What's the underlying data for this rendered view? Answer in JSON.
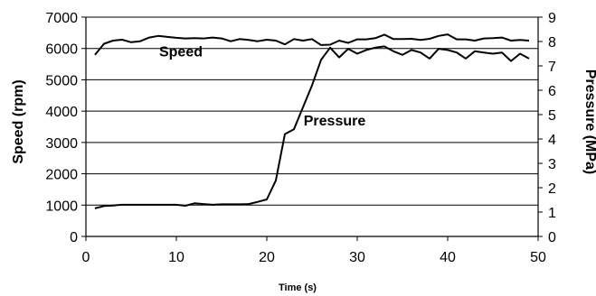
{
  "chart_data": {
    "type": "line",
    "xlabel": "Time (s)",
    "ylabel_left": "Speed (rpm)",
    "ylabel_right": "Pressure (MPa)",
    "xlim": [
      0,
      50
    ],
    "ylim_left": [
      0,
      7000
    ],
    "ylim_right": [
      0,
      9
    ],
    "x_ticks": [
      0,
      10,
      20,
      30,
      40,
      50
    ],
    "y_ticks_left": [
      0,
      1000,
      2000,
      3000,
      4000,
      5000,
      6000,
      7000
    ],
    "y_ticks_right": [
      0,
      1,
      2,
      3,
      4,
      5,
      6,
      7,
      8,
      9
    ],
    "grid": "horizontal",
    "series": [
      {
        "name": "Speed",
        "axis": "left",
        "x": [
          1,
          2,
          3,
          4,
          5,
          6,
          7,
          8,
          9,
          10,
          11,
          12,
          13,
          14,
          15,
          16,
          17,
          18,
          19,
          20,
          21,
          22,
          23,
          24,
          25,
          26,
          27,
          28,
          29,
          30,
          31,
          32,
          33,
          34,
          35,
          36,
          37,
          38,
          39,
          40,
          41,
          42,
          43,
          44,
          45,
          46,
          47,
          48,
          49
        ],
        "y": [
          5800,
          6150,
          6250,
          6280,
          6200,
          6230,
          6350,
          6400,
          6370,
          6340,
          6320,
          6330,
          6320,
          6350,
          6320,
          6230,
          6300,
          6270,
          6230,
          6280,
          6250,
          6130,
          6300,
          6250,
          6300,
          6110,
          6120,
          6250,
          6180,
          6290,
          6290,
          6330,
          6440,
          6300,
          6300,
          6310,
          6270,
          6310,
          6400,
          6450,
          6290,
          6290,
          6250,
          6320,
          6330,
          6350,
          6250,
          6270,
          6250
        ]
      },
      {
        "name": "Pressure",
        "axis": "right",
        "x": [
          1,
          2,
          3,
          4,
          5,
          6,
          7,
          8,
          9,
          10,
          11,
          12,
          13,
          14,
          15,
          16,
          17,
          18,
          19,
          20,
          21,
          22,
          23,
          24,
          25,
          26,
          27,
          28,
          29,
          30,
          31,
          32,
          33,
          34,
          35,
          36,
          37,
          38,
          39,
          40,
          41,
          42,
          43,
          44,
          45,
          46,
          47,
          48,
          49
        ],
        "y": [
          1.15,
          1.25,
          1.27,
          1.3,
          1.3,
          1.3,
          1.3,
          1.3,
          1.3,
          1.3,
          1.26,
          1.36,
          1.33,
          1.3,
          1.32,
          1.32,
          1.32,
          1.33,
          1.42,
          1.52,
          2.3,
          4.2,
          4.4,
          5.3,
          6.2,
          7.25,
          7.75,
          7.35,
          7.7,
          7.5,
          7.65,
          7.75,
          7.8,
          7.6,
          7.45,
          7.65,
          7.55,
          7.3,
          7.7,
          7.65,
          7.55,
          7.3,
          7.6,
          7.55,
          7.5,
          7.55,
          7.2,
          7.5,
          7.3
        ]
      }
    ],
    "annotations": [
      {
        "text": "Speed",
        "x": 10.5,
        "y_left": 5750
      },
      {
        "text": "Pressure",
        "x": 27.5,
        "y_left": 3550
      }
    ]
  }
}
